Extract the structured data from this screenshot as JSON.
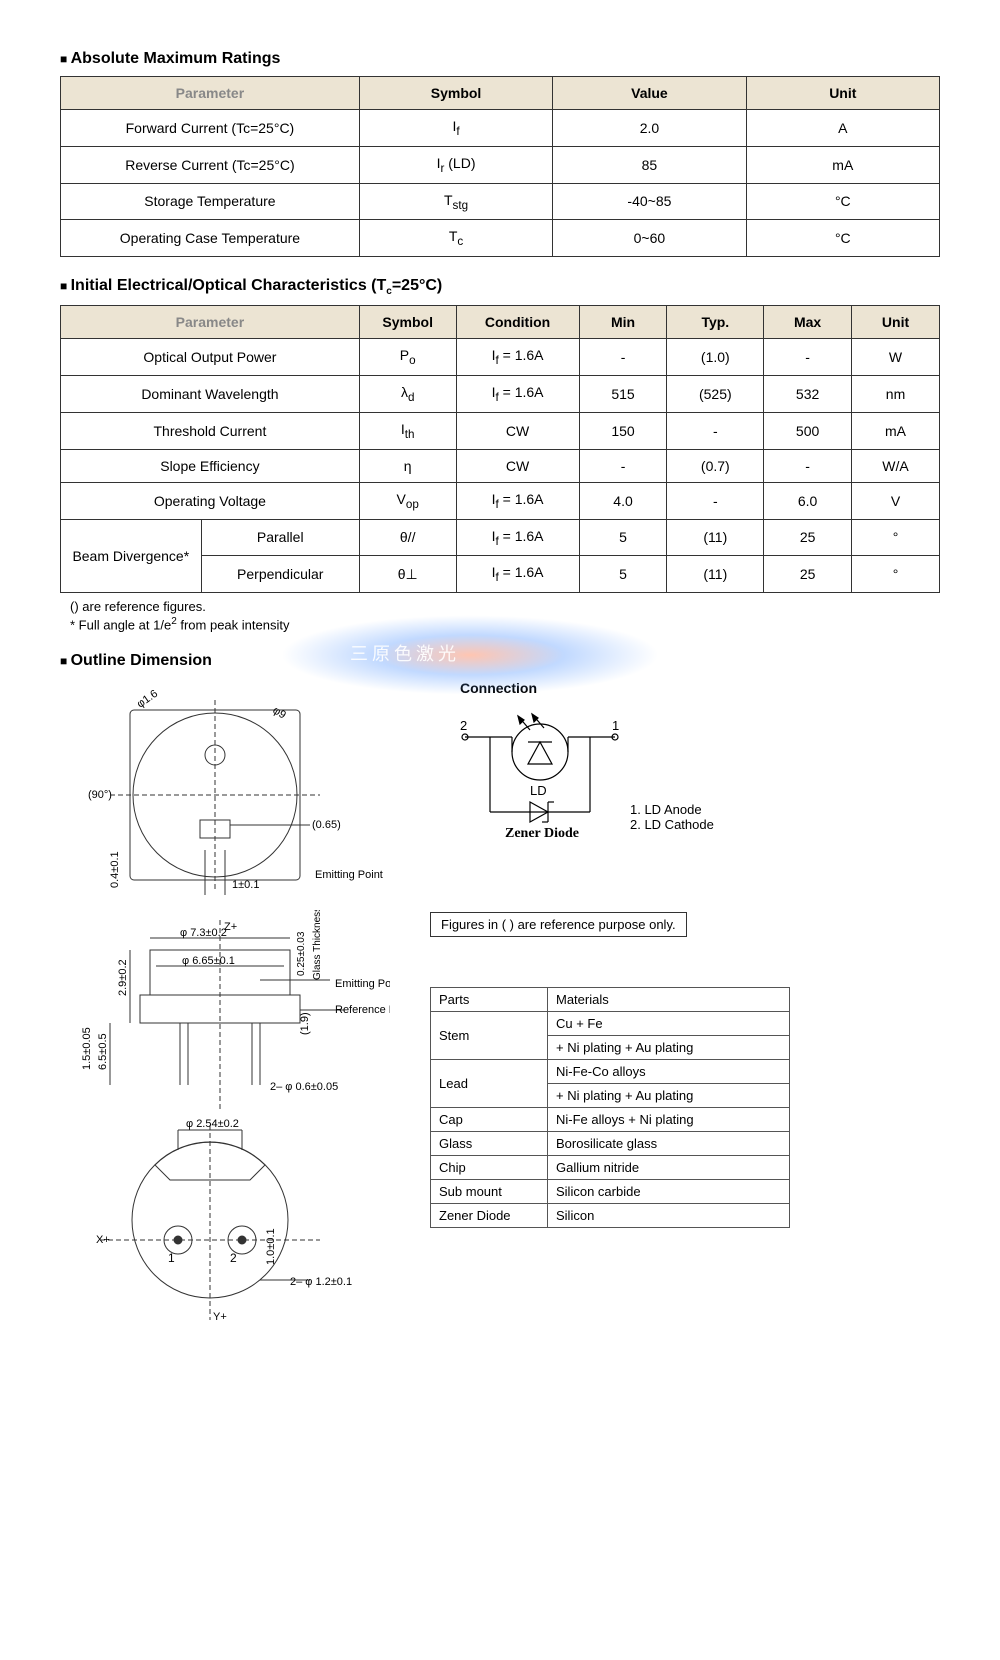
{
  "sections": {
    "abs_max": {
      "title": "Absolute Maximum Ratings",
      "headers": [
        "Parameter",
        "Symbol",
        "Value",
        "Unit"
      ],
      "rows": [
        {
          "param": "Forward Current (Tc=25°C)",
          "sym_html": "I<sub>f</sub>",
          "val": "2.0",
          "unit": "A"
        },
        {
          "param": "Reverse Current (Tc=25°C)",
          "sym_html": "I<sub>r</sub> (LD)",
          "val": "85",
          "unit": "mA"
        },
        {
          "param": "Storage Temperature",
          "sym_html": "T<sub>stg</sub>",
          "val": "-40~85",
          "unit": "°C"
        },
        {
          "param": "Operating Case Temperature",
          "sym_html": "T<sub>c</sub>",
          "val": "0~60",
          "unit": "°C"
        }
      ]
    },
    "char": {
      "title": "Initial Electrical/Optical Characteristics (Tc=25°C)",
      "headers": [
        "Parameter",
        "Symbol",
        "Condition",
        "Min",
        "Typ.",
        "Max",
        "Unit"
      ],
      "rows": [
        {
          "param": "Optical Output Power",
          "sym_html": "P<sub>o</sub>",
          "cond_html": "I<sub>f</sub> = 1.6A",
          "min": "-",
          "typ": "(1.0)",
          "max": "-",
          "unit": "W"
        },
        {
          "param": "Dominant Wavelength",
          "sym_html": "λ<sub>d</sub>",
          "cond_html": "I<sub>f</sub> = 1.6A",
          "min": "515",
          "typ": "(525)",
          "max": "532",
          "unit": "nm"
        },
        {
          "param": "Threshold Current",
          "sym_html": "I<sub>th</sub>",
          "cond_html": "CW",
          "min": "150",
          "typ": "-",
          "max": "500",
          "unit": "mA"
        },
        {
          "param": "Slope Efficiency",
          "sym_html": "η",
          "cond_html": "CW",
          "min": "-",
          "typ": "(0.7)",
          "max": "-",
          "unit": "W/A"
        },
        {
          "param": "Operating Voltage",
          "sym_html": "V<sub>op</sub>",
          "cond_html": "I<sub>f</sub> = 1.6A",
          "min": "4.0",
          "typ": "-",
          "max": "6.0",
          "unit": "V"
        }
      ],
      "beam": {
        "group": "Beam Divergence*",
        "rows": [
          {
            "sub": "Parallel",
            "sym_html": "θ//",
            "cond_html": "I<sub>f</sub> = 1.6A",
            "min": "5",
            "typ": "(11)",
            "max": "25",
            "unit": "°"
          },
          {
            "sub": "Perpendicular",
            "sym_html": "θ⊥",
            "cond_html": "I<sub>f</sub> = 1.6A",
            "min": "5",
            "typ": "(11)",
            "max": "25",
            "unit": "°"
          }
        ]
      },
      "note1": "() are reference figures.",
      "note2": "* Full angle at 1/e² from peak intensity"
    },
    "outline": {
      "title": "Outline Dimension",
      "conn_title": "Connection",
      "ld_label": "LD",
      "zener": "Zener Diode",
      "pin1": "1. LD Anode",
      "pin2": "2. LD Cathode",
      "ref_note": "Figures in ( ) are reference purpose only.",
      "dims": {
        "phi16": "φ1.6",
        "phi9": "φ9",
        "ninety": "(90°)",
        "p065": "(0.65)",
        "one": "1±0.1",
        "p04": "0.4±0.1",
        "emit": "Emitting Point",
        "z": "Z+",
        "phi73": "φ 7.3±0.2",
        "phi665": "φ 6.65±0.1",
        "glass": "Glass Thickness",
        "p025": "0.25±0.03",
        "ref_plane": "Reference Plane",
        "p19": "(1.9)",
        "p29": "2.9±0.2",
        "p65": "6.5±0.5",
        "p15": "1.5±0.05",
        "pin_dim": "2– φ 0.6±0.05",
        "phi254": "φ 2.54±0.2",
        "x": "X+",
        "y": "Y+",
        "p10": "1.0±0.1",
        "pin_dim2": "2– φ 1.2±0.1",
        "n1": "1",
        "n2": "2"
      }
    },
    "materials": {
      "headers": [
        "Parts",
        "Materials"
      ],
      "rows": [
        {
          "part": "Stem",
          "mat": [
            "Cu + Fe",
            "+ Ni plating + Au plating"
          ]
        },
        {
          "part": "Lead",
          "mat": [
            "Ni-Fe-Co alloys",
            "+ Ni plating + Au plating"
          ]
        },
        {
          "part": "Cap",
          "mat": [
            "Ni-Fe alloys + Ni plating"
          ]
        },
        {
          "part": "Glass",
          "mat": [
            "Borosilicate glass"
          ]
        },
        {
          "part": "Chip",
          "mat": [
            "Gallium nitride"
          ]
        },
        {
          "part": "Sub mount",
          "mat": [
            "Silicon carbide"
          ]
        },
        {
          "part": "Zener Diode",
          "mat": [
            "Silicon"
          ]
        }
      ]
    }
  },
  "watermark": "三原色激光",
  "colors": {
    "header_bg": "#ece4d3",
    "border": "#333333"
  }
}
